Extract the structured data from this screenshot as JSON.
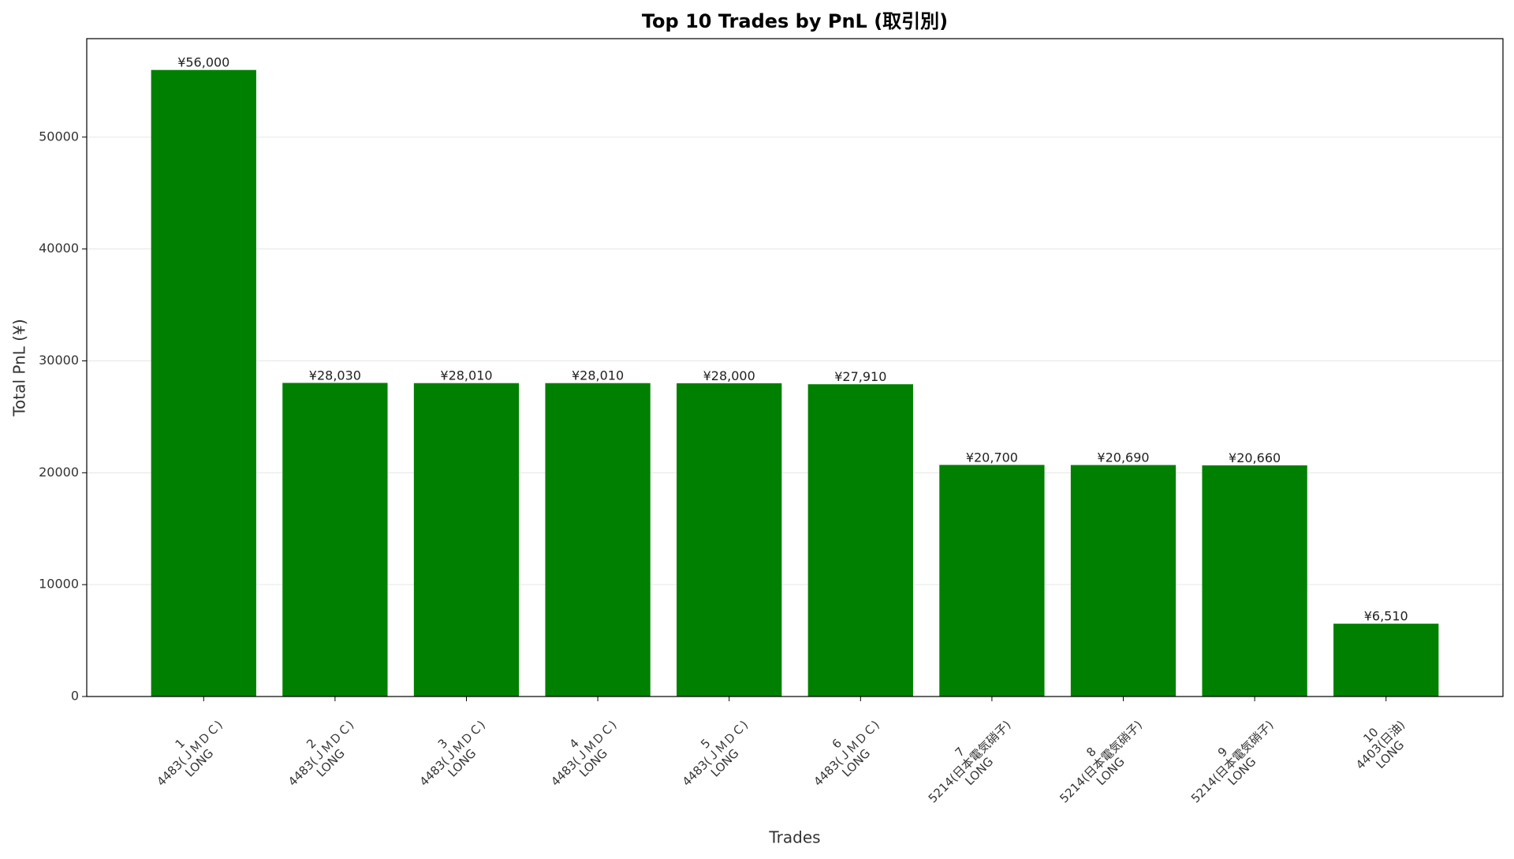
{
  "chart_data": {
    "type": "bar",
    "title": "Top 10 Trades by PnL (取引別)",
    "x_label": "Trades",
    "y_label": "Total PnL (¥)",
    "categories": [
      "1\n4483(ＪＭＤＣ)\nLONG",
      "2\n4483(ＪＭＤＣ)\nLONG",
      "3\n4483(ＪＭＤＣ)\nLONG",
      "4\n4483(ＪＭＤＣ)\nLONG",
      "5\n4483(ＪＭＤＣ)\nLONG",
      "6\n4483(ＪＭＤＣ)\nLONG",
      "7\n5214(日本電気硝子)\nLONG",
      "8\n5214(日本電気硝子)\nLONG",
      "9\n5214(日本電気硝子)\nLONG",
      "10\n4403(日油)\nLONG"
    ],
    "values": [
      56000,
      28030,
      28010,
      28010,
      28000,
      27910,
      20700,
      20690,
      20660,
      6510
    ],
    "value_labels": [
      "¥56,000",
      "¥28,030",
      "¥28,010",
      "¥28,010",
      "¥28,000",
      "¥27,910",
      "¥20,700",
      "¥20,690",
      "¥20,660",
      "¥6,510"
    ],
    "color": "#008000",
    "ylim": [
      0,
      58800
    ],
    "yticks": [
      0,
      10000,
      20000,
      30000,
      40000,
      50000
    ],
    "grid": true
  }
}
